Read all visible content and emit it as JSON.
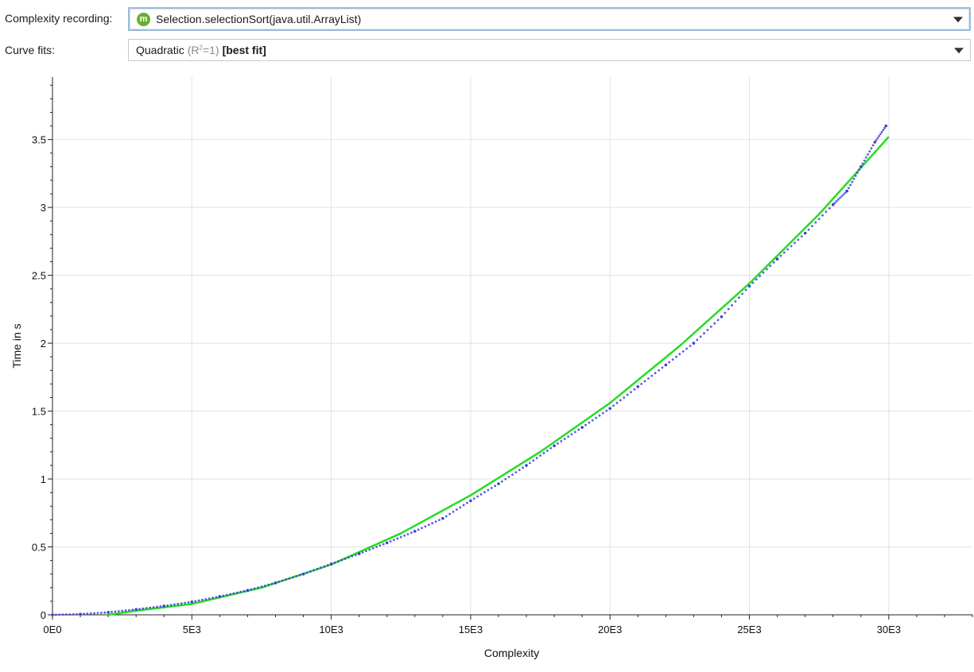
{
  "recording": {
    "label": "Complexity recording:",
    "badge_letter": "m",
    "badge_icon": "method-icon",
    "value": "Selection.selectionSort(java.util.ArrayList)"
  },
  "curve_fits": {
    "label": "Curve fits:",
    "fit_name": "Quadratic",
    "r2_prefix": "(R",
    "r2_sup": "2",
    "r2_suffix": "=1)",
    "best_fit": "[best fit]"
  },
  "colors": {
    "points": "#3c3fd8",
    "fit_line": "#22dd22",
    "grid": "#e2e2e2",
    "accent_border": "#9bbbd8",
    "method_badge": "#6aae2e"
  },
  "chart_data": {
    "type": "scatter",
    "xlabel": "Complexity",
    "ylabel": "Time in s",
    "xlim": [
      0,
      33000
    ],
    "ylim": [
      0,
      3.96
    ],
    "x_ticks": [
      {
        "value": 0,
        "label": "0E0"
      },
      {
        "value": 5000,
        "label": "5E3"
      },
      {
        "value": 10000,
        "label": "10E3"
      },
      {
        "value": 15000,
        "label": "15E3"
      },
      {
        "value": 20000,
        "label": "20E3"
      },
      {
        "value": 25000,
        "label": "25E3"
      },
      {
        "value": 30000,
        "label": "30E3"
      }
    ],
    "y_ticks": [
      {
        "value": 0,
        "label": "0"
      },
      {
        "value": 0.5,
        "label": "0.5"
      },
      {
        "value": 1,
        "label": "1"
      },
      {
        "value": 1.5,
        "label": "1.5"
      },
      {
        "value": 2,
        "label": "2"
      },
      {
        "value": 2.5,
        "label": "2.5"
      },
      {
        "value": 3,
        "label": "3"
      },
      {
        "value": 3.5,
        "label": "3.5"
      }
    ],
    "grid": true,
    "series": [
      {
        "role": "measured",
        "x": [
          0,
          1000,
          2000,
          3000,
          4000,
          5000,
          6000,
          7000,
          8000,
          9000,
          10000,
          11000,
          12000,
          13000,
          14000,
          15000,
          16000,
          17000,
          18000,
          19000,
          20000,
          21000,
          22000,
          23000,
          24000,
          25000,
          26000,
          27000,
          28000,
          28500,
          29000,
          29500,
          29900
        ],
        "y": [
          0.0,
          0.005,
          0.018,
          0.04,
          0.065,
          0.095,
          0.135,
          0.18,
          0.235,
          0.3,
          0.375,
          0.45,
          0.53,
          0.615,
          0.71,
          0.84,
          0.965,
          1.1,
          1.245,
          1.38,
          1.52,
          1.68,
          1.84,
          2.0,
          2.195,
          2.42,
          2.62,
          2.81,
          3.02,
          3.12,
          3.3,
          3.48,
          3.6
        ]
      },
      {
        "role": "fit",
        "x": [
          2000,
          3000,
          5000,
          7500,
          10000,
          12500,
          15000,
          17500,
          20000,
          22500,
          25000,
          27500,
          30000
        ],
        "y": [
          0.0,
          0.03,
          0.08,
          0.2,
          0.37,
          0.6,
          0.88,
          1.2,
          1.56,
          1.98,
          2.44,
          2.95,
          3.52
        ]
      }
    ]
  }
}
